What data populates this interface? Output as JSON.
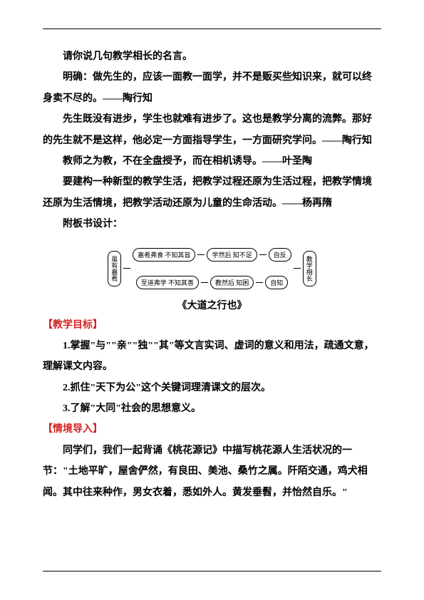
{
  "paragraphs": {
    "p1": "请你说几句教学相长的名言。",
    "p2": "明确：做先生的，应该一面教一面学，并不是贩买些知识来，就可以终身卖不尽的。——陶行知",
    "p3": "先生既没有进步，学生也就难有进步了。这也是教学分离的流弊。那好的先生就不是这样，他必定一方面指导学生，一方面研究学问。——陶行知",
    "p4": "教师之为教，不在全盘授予，而在相机诱导。——叶圣陶",
    "p5": "要建构一种新型的教学生活，把教学过程还原为生活过程，把教学情境还原为生活情境，把教学活动还原为儿童的生命活动。——杨再隋",
    "p6": "附板书设计："
  },
  "diagram": {
    "left": "虽有嘉肴",
    "r1a": "嘉肴弗食\n不知其旨",
    "r1b": "学然后\n知不足",
    "r1c": "自反",
    "r2a": "至道弗学\n不知其善",
    "r2b": "教然后\n知困",
    "r2c": "自知",
    "right": "教学相长",
    "caption": "《大道之行也》"
  },
  "headings": {
    "goals": "【教学目标】",
    "intro": "【情境导入】"
  },
  "goals": {
    "g1": "1.掌握\"与\"\"亲\"\"独\"\"其\"等文言实词、虚词的意义和用法，疏通文意，理解课文内容。",
    "g2": "2.抓住\"天下为公\"这个关键词理清课文的层次。",
    "g3": "3.了解\"大同\"社会的思想意义。"
  },
  "intro": {
    "text": "同学们，我们一起背诵《桃花源记》中描写桃花源人生活状况的一节：\"土地平旷，屋舍俨然，有良田、美池、桑竹之属。阡陌交通，鸡犬相闻。其中往来种作，男女衣着，悉如外人。黄发垂髫，并怡然自乐。\""
  },
  "colors": {
    "text": "#000000",
    "red": "#d22323",
    "bg": "#ffffff"
  }
}
